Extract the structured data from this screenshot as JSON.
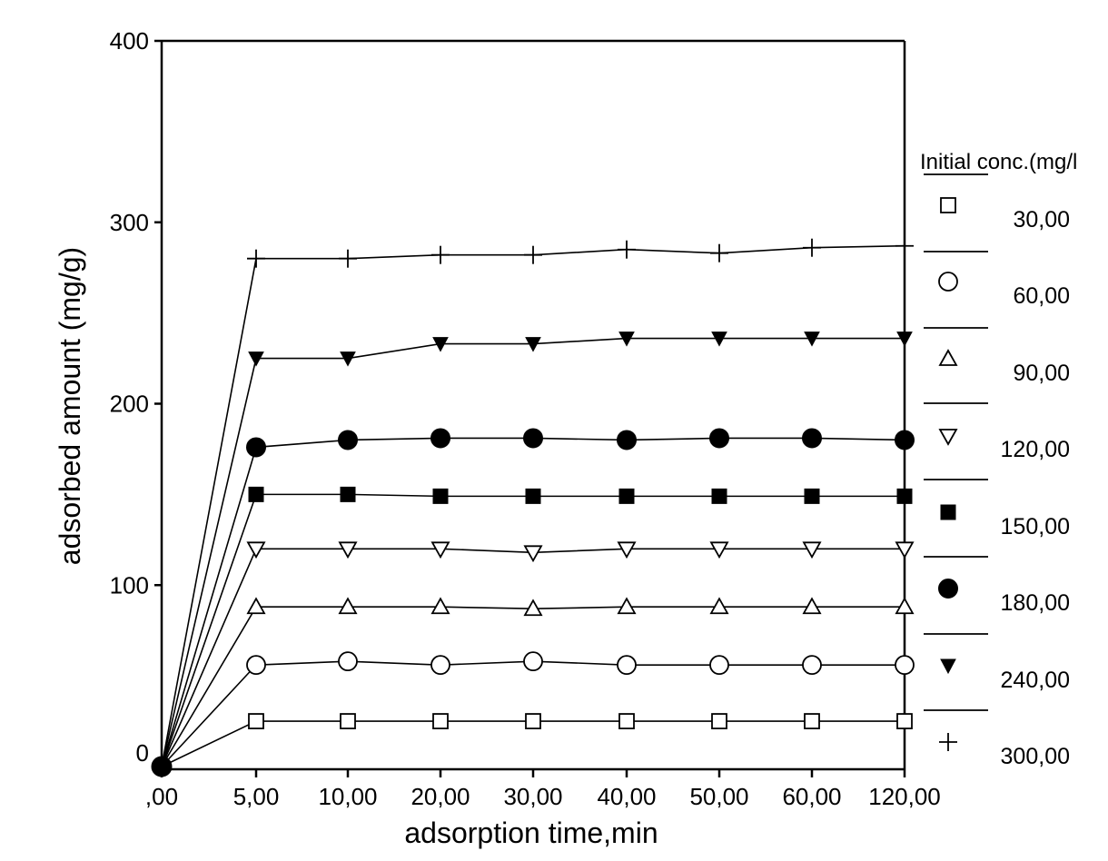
{
  "chart_data": {
    "type": "line",
    "title": "",
    "xlabel": "adsorption time,min",
    "ylabel": "adsorbed amount (mg/g)",
    "x": [
      ",00",
      "5,00",
      "10,00",
      "20,00",
      "30,00",
      "40,00",
      "50,00",
      "60,00",
      "120,00"
    ],
    "ylim": [
      0,
      400
    ],
    "yticks": [
      "0",
      "100",
      "200",
      "300",
      "400"
    ],
    "grid": false,
    "legend": {
      "title": "Initial conc.(mg/l",
      "position": "right"
    },
    "series": [
      {
        "name": "30,00",
        "marker": "square-open",
        "values": [
          0,
          25,
          25,
          25,
          25,
          25,
          25,
          25,
          25
        ]
      },
      {
        "name": "60,00",
        "marker": "circle-open",
        "values": [
          0,
          56,
          58,
          56,
          58,
          56,
          56,
          56,
          56
        ]
      },
      {
        "name": "90,00",
        "marker": "triangle-up-open",
        "values": [
          0,
          88,
          88,
          88,
          87,
          88,
          88,
          88,
          88
        ]
      },
      {
        "name": "120,00",
        "marker": "triangle-down-open",
        "values": [
          0,
          120,
          120,
          120,
          118,
          120,
          120,
          120,
          120
        ]
      },
      {
        "name": "150,00",
        "marker": "square-filled",
        "values": [
          0,
          150,
          150,
          149,
          149,
          149,
          149,
          149,
          149
        ]
      },
      {
        "name": "180,00",
        "marker": "circle-filled",
        "values": [
          0,
          176,
          180,
          181,
          181,
          180,
          181,
          181,
          180
        ]
      },
      {
        "name": "240,00",
        "marker": "triangle-down-filled",
        "values": [
          0,
          225,
          225,
          233,
          233,
          236,
          236,
          236,
          236
        ]
      },
      {
        "name": "300,00",
        "marker": "plus",
        "values": [
          0,
          280,
          280,
          282,
          282,
          285,
          283,
          286,
          287
        ]
      }
    ]
  }
}
